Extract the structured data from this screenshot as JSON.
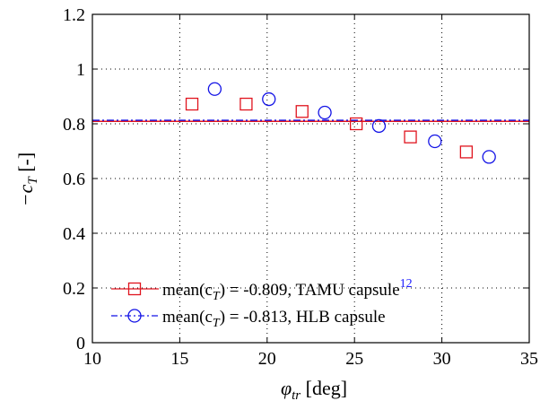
{
  "chart_data": {
    "type": "scatter",
    "xlabel_symbol": "φ",
    "xlabel_sub": "tr",
    "xlabel_unit": " [deg]",
    "ylabel_prefix": "−c",
    "ylabel_sub": "T",
    "ylabel_unit": " [-]",
    "xlim": [
      10,
      35
    ],
    "ylim": [
      0,
      1.2
    ],
    "xticks": [
      10,
      15,
      20,
      25,
      30,
      35
    ],
    "yticks": [
      0,
      0.2,
      0.4,
      0.6,
      0.8,
      1,
      1.2
    ],
    "xtick_labels": [
      "10",
      "15",
      "20",
      "25",
      "30",
      "35"
    ],
    "ytick_labels": [
      "0",
      "0.2",
      "0.4",
      "0.6",
      "0.8",
      "1",
      "1.2"
    ],
    "grid": true,
    "legend_position": "bottom-left",
    "series": [
      {
        "name": "mean(c_T) = -0.809, TAMU capsule 12",
        "legend_prefix": "mean(c",
        "legend_sub": "T",
        "legend_text": ") = -0.809, TAMU capsule",
        "legend_ref": "12",
        "marker": "square",
        "color": "#e0141e",
        "mean_line": 0.809,
        "mean_line_style": "solid",
        "x": [
          15.7,
          18.8,
          22.0,
          25.1,
          28.2,
          31.4
        ],
        "y": [
          0.872,
          0.872,
          0.845,
          0.8,
          0.752,
          0.697
        ]
      },
      {
        "name": "mean(c_T) = -0.813, HLB capsule",
        "legend_prefix": "mean(c",
        "legend_sub": "T",
        "legend_text": ") = -0.813, HLB capsule",
        "marker": "circle",
        "color": "#1414e6",
        "mean_line": 0.813,
        "mean_line_style": "dashdot",
        "x": [
          17.0,
          20.1,
          23.3,
          26.4,
          29.6,
          32.7
        ],
        "y": [
          0.927,
          0.89,
          0.841,
          0.792,
          0.736,
          0.679
        ]
      }
    ]
  }
}
